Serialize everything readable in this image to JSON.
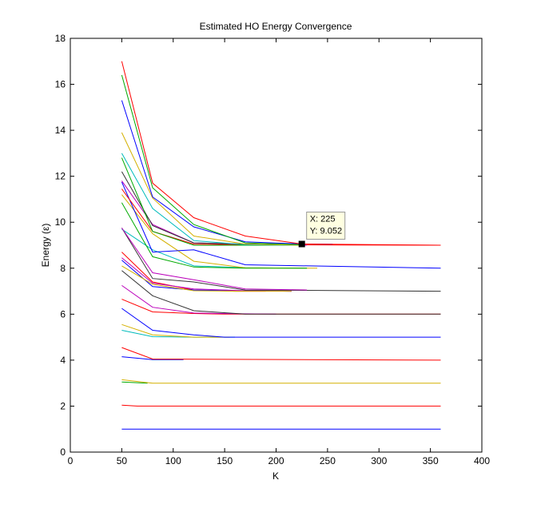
{
  "chart_data": {
    "type": "line",
    "title": "Estimated HO Energy Convergence",
    "xlabel": "K",
    "ylabel": "Energy (ε)",
    "xlim": [
      0,
      400
    ],
    "ylim": [
      0,
      18
    ],
    "xticks": [
      0,
      50,
      100,
      150,
      200,
      250,
      300,
      350,
      400
    ],
    "yticks": [
      0,
      2,
      4,
      6,
      8,
      10,
      12,
      14,
      16,
      18
    ],
    "grid": false,
    "legend": "none",
    "datatip": {
      "x": 225,
      "y": 9.052,
      "label_x": "X: 225",
      "label_y": "Y: 9.052"
    },
    "series": [
      {
        "color": "#0000ff",
        "x": [
          50,
          360
        ],
        "y": [
          1.0,
          1.0
        ]
      },
      {
        "color": "#ff0000",
        "x": [
          50,
          65,
          360
        ],
        "y": [
          2.04,
          2.0,
          2.0
        ]
      },
      {
        "color": "#00aa00",
        "x": [
          50,
          75
        ],
        "y": [
          3.05,
          3.0
        ]
      },
      {
        "color": "#d4b000",
        "x": [
          50,
          80,
          360
        ],
        "y": [
          3.15,
          3.0,
          3.0
        ]
      },
      {
        "color": "#0000ff",
        "x": [
          50,
          80,
          110
        ],
        "y": [
          4.15,
          4.02,
          4.02
        ]
      },
      {
        "color": "#ff0000",
        "x": [
          50,
          80,
          360
        ],
        "y": [
          4.55,
          4.05,
          4.0
        ]
      },
      {
        "color": "#00bbbb",
        "x": [
          50,
          80,
          120,
          160
        ],
        "y": [
          5.3,
          5.02,
          5.0,
          5.0
        ]
      },
      {
        "color": "#d4b000",
        "x": [
          50,
          80,
          120,
          155
        ],
        "y": [
          5.55,
          5.1,
          5.0,
          5.0
        ]
      },
      {
        "color": "#0000ff",
        "x": [
          50,
          80,
          120,
          150,
          360
        ],
        "y": [
          6.25,
          5.3,
          5.1,
          5.0,
          5.0
        ]
      },
      {
        "color": "#ff0000",
        "x": [
          50,
          80,
          120,
          150,
          360
        ],
        "y": [
          6.65,
          6.1,
          6.03,
          6.0,
          6.0
        ]
      },
      {
        "color": "#bb00bb",
        "x": [
          50,
          80,
          120,
          160,
          200
        ],
        "y": [
          7.25,
          6.3,
          6.05,
          6.02,
          6.0
        ]
      },
      {
        "color": "#333333",
        "x": [
          50,
          80,
          120,
          170,
          360
        ],
        "y": [
          7.9,
          6.8,
          6.15,
          6.0,
          6.0
        ]
      },
      {
        "color": "#ff0000",
        "x": [
          50,
          80,
          120,
          160,
          190
        ],
        "y": [
          8.7,
          7.4,
          7.05,
          7.0,
          7.0
        ]
      },
      {
        "color": "#0000ff",
        "x": [
          50,
          80,
          120,
          170,
          215
        ],
        "y": [
          8.35,
          7.2,
          7.05,
          7.02,
          7.0
        ]
      },
      {
        "color": "#bb00bb",
        "x": [
          50,
          80,
          120,
          170,
          215
        ],
        "y": [
          8.45,
          7.35,
          7.1,
          7.02,
          7.0
        ]
      },
      {
        "color": "#d4b000",
        "x": [
          50,
          80,
          120,
          170,
          215
        ],
        "y": [
          8.1,
          7.3,
          7.02,
          7.0,
          7.0
        ]
      },
      {
        "color": "#333333",
        "x": [
          50,
          80,
          120,
          170,
          360
        ],
        "y": [
          9.75,
          7.55,
          7.4,
          7.05,
          7.0
        ]
      },
      {
        "color": "#00bbbb",
        "x": [
          50,
          80,
          120,
          170,
          230
        ],
        "y": [
          9.7,
          8.8,
          8.1,
          8.02,
          8.0
        ]
      },
      {
        "color": "#bb00bb",
        "x": [
          50,
          80,
          120,
          170,
          230
        ],
        "y": [
          9.75,
          7.8,
          7.5,
          7.1,
          7.05
        ]
      },
      {
        "color": "#d4b000",
        "x": [
          50,
          80,
          120,
          170,
          240
        ],
        "y": [
          11.2,
          9.5,
          8.3,
          8.02,
          8.0
        ]
      },
      {
        "color": "#00aa00",
        "x": [
          50,
          80,
          120,
          170,
          230
        ],
        "y": [
          10.85,
          8.5,
          8.05,
          8.0,
          8.0
        ]
      },
      {
        "color": "#0000ff",
        "x": [
          50,
          80,
          120,
          170,
          360
        ],
        "y": [
          11.75,
          8.7,
          8.8,
          8.15,
          8.0
        ]
      },
      {
        "color": "#ff0000",
        "x": [
          50,
          80,
          120,
          170,
          360
        ],
        "y": [
          11.45,
          9.6,
          9.05,
          9.02,
          9.0
        ]
      },
      {
        "color": "#bb00bb",
        "x": [
          50,
          80,
          120,
          170,
          230
        ],
        "y": [
          11.8,
          9.9,
          9.1,
          9.05,
          9.0
        ]
      },
      {
        "color": "#333333",
        "x": [
          50,
          80,
          120,
          170,
          225
        ],
        "y": [
          12.2,
          9.85,
          9.1,
          9.05,
          9.02
        ]
      },
      {
        "color": "#00aa00",
        "x": [
          50,
          80,
          120,
          170,
          225
        ],
        "y": [
          12.8,
          9.6,
          9.0,
          9.0,
          9.0
        ]
      },
      {
        "color": "#00bbbb",
        "x": [
          50,
          80,
          120,
          170,
          225
        ],
        "y": [
          13.0,
          10.6,
          9.2,
          9.02,
          9.0
        ]
      },
      {
        "color": "#d4b000",
        "x": [
          50,
          80,
          120,
          170,
          225
        ],
        "y": [
          13.9,
          11.05,
          9.4,
          9.05,
          9.0
        ]
      },
      {
        "color": "#0000ff",
        "x": [
          50,
          80,
          120,
          170,
          225,
          255
        ],
        "y": [
          15.3,
          11.1,
          9.8,
          9.15,
          9.052,
          9.04
        ]
      },
      {
        "color": "#00aa00",
        "x": [
          50,
          80,
          120,
          170,
          225
        ],
        "y": [
          16.4,
          11.5,
          9.9,
          9.1,
          9.02
        ]
      },
      {
        "color": "#ff0000",
        "x": [
          50,
          80,
          120,
          170,
          225,
          360
        ],
        "y": [
          17.0,
          11.7,
          10.2,
          9.4,
          9.052,
          9.0
        ]
      }
    ]
  }
}
